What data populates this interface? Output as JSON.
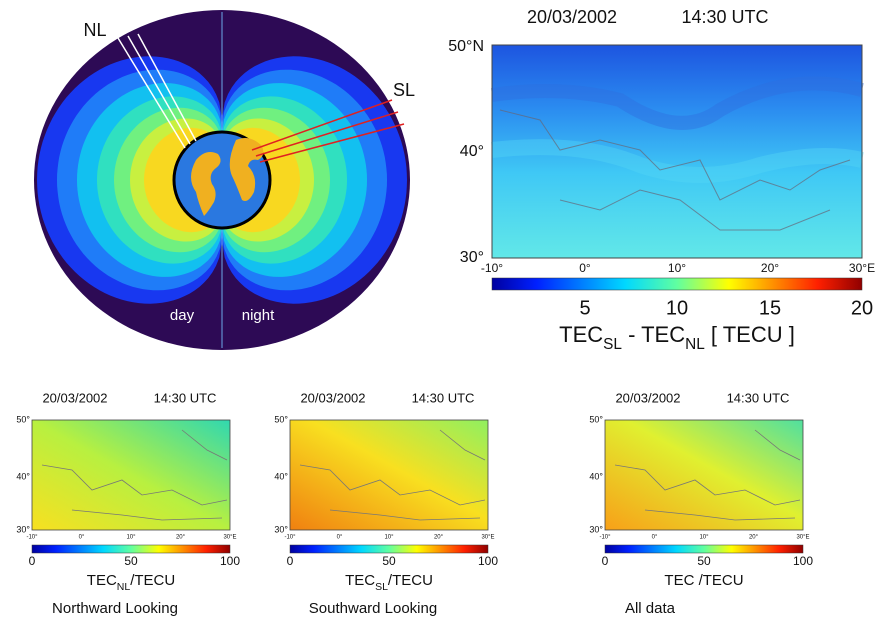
{
  "globe": {
    "labels": {
      "nl": "NL",
      "sl": "SL",
      "day": "day",
      "night": "night"
    }
  },
  "main_map": {
    "date": "20/03/2002",
    "time": "14:30 UTC",
    "lat_labels": [
      "50°N",
      "40°",
      "30°"
    ],
    "lon_labels": [
      "-10°",
      "0°",
      "10°",
      "20°",
      "30°E"
    ],
    "colorbar_ticks": [
      5,
      10,
      15,
      20
    ],
    "colorbar_label": [
      "TEC",
      "SL",
      " - TEC",
      "NL",
      " [ TECU ]"
    ]
  },
  "panels": [
    {
      "date": "20/03/2002",
      "time": "14:30 UTC",
      "lat_labels": [
        "50°",
        "40°",
        "30°"
      ],
      "lon_labels": [
        "-10°",
        "0°",
        "10°",
        "20°",
        "30°E"
      ],
      "colorbar_ticks": [
        0,
        50,
        100
      ],
      "colorbar_label": [
        "TEC",
        "NL",
        "/TECU"
      ],
      "caption": "Northward Looking"
    },
    {
      "date": "20/03/2002",
      "time": "14:30 UTC",
      "lat_labels": [
        "50°",
        "40°",
        "30°"
      ],
      "lon_labels": [
        "-10°",
        "0°",
        "10°",
        "20°",
        "30°E"
      ],
      "colorbar_ticks": [
        0,
        50,
        100
      ],
      "colorbar_label": [
        "TEC",
        "SL",
        "/TECU"
      ],
      "caption": "Southward Looking"
    },
    {
      "date": "20/03/2002",
      "time": "14:30 UTC",
      "lat_labels": [
        "50°",
        "40°",
        "30°"
      ],
      "lon_labels": [
        "-10°",
        "0°",
        "10°",
        "20°",
        "30°E"
      ],
      "colorbar_ticks": [
        0,
        50,
        100
      ],
      "colorbar_label": [
        "TEC /TECU"
      ],
      "caption": "All data"
    }
  ]
}
